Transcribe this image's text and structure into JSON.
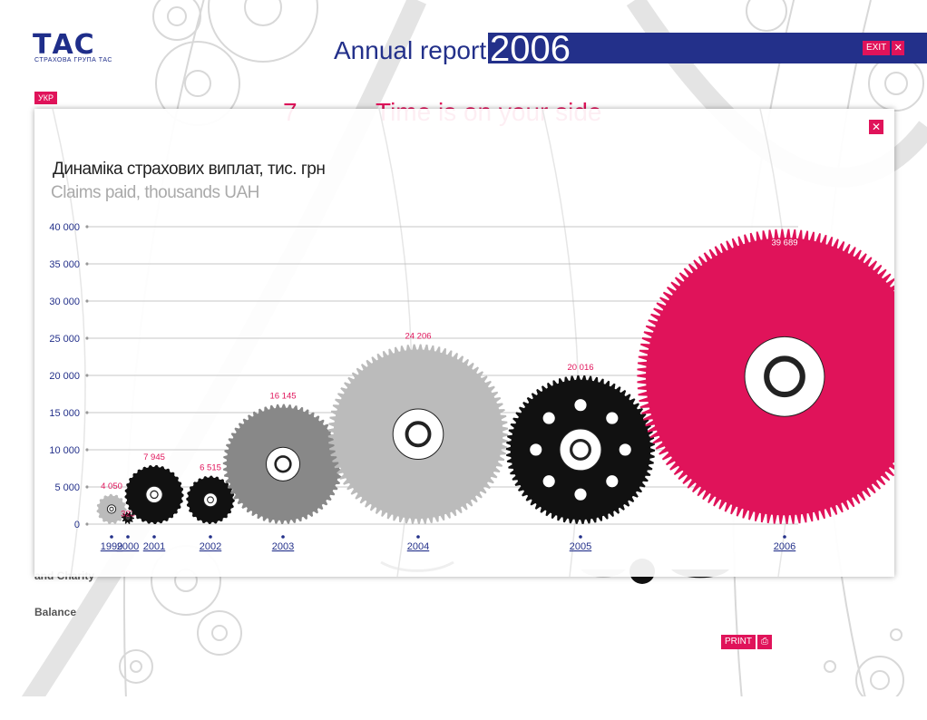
{
  "header": {
    "logo": "ТАС",
    "logo_sub": "СТРАХОВА ГРУПА ТАС",
    "title": "Annual report",
    "year": "2006",
    "exit_label": "EXIT",
    "exit_icon": "close-icon"
  },
  "lang_label": "УКР",
  "behind": {
    "page_num": "7",
    "heading": "Time is on your side"
  },
  "sidebar": {
    "item1": "and Charity",
    "item2": "Balance"
  },
  "print_label": "PRINT",
  "colors": {
    "navy": "#23308a",
    "accent": "#e0135a",
    "dark": "#111111",
    "mid": "#888888",
    "light": "#bbbbbb"
  },
  "chart_data": {
    "type": "bar",
    "title": "Динаміка страхових виплат, тис. грн",
    "subtitle": "Claims paid, thousands UAH",
    "categories": [
      "1999",
      "2000",
      "2001",
      "2002",
      "2003",
      "2004",
      "2005",
      "2006"
    ],
    "values": [
      4050,
      323,
      7945,
      6515,
      16145,
      24206,
      20016,
      39689
    ],
    "value_labels": [
      "4 050",
      "323",
      "7 945",
      "6 515",
      "16 145",
      "24 206",
      "20 016",
      "39 689"
    ],
    "y_ticks": [
      "0",
      "5 000",
      "10 000",
      "15 000",
      "20 000",
      "25 000",
      "30 000",
      "35 000",
      "40 000"
    ],
    "ylim": [
      0,
      40000
    ],
    "grid": true,
    "mark": "gear"
  }
}
